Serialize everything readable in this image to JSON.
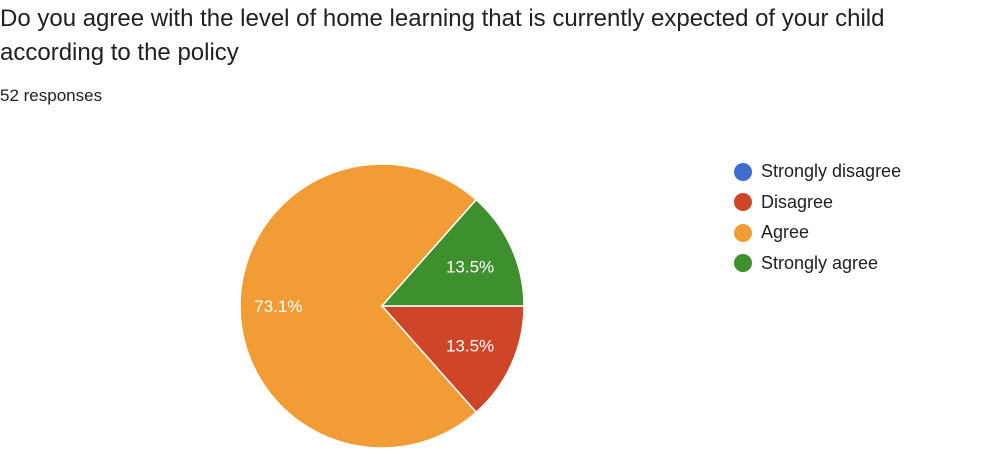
{
  "title": "Do you agree with the level of home learning that is currently expected of your child according to the policy",
  "responses": "52 responses",
  "chart_data": {
    "type": "pie",
    "title": "Do you agree with the level of home learning that is currently expected of your child according to the policy",
    "categories": [
      "Strongly disagree",
      "Disagree",
      "Agree",
      "Strongly agree"
    ],
    "values": [
      0,
      7,
      38,
      7
    ],
    "percent_labels": [
      "",
      "13.5%",
      "73.1%",
      "13.5%"
    ],
    "colors": [
      "#3366cc",
      "#dc3912",
      "#ff9900",
      "#109618"
    ],
    "display_colors": [
      "#3f6ccf",
      "#cf4527",
      "#f29c35",
      "#3e8f2e"
    ],
    "start_angle": "3 o'clock, clockwise",
    "legend_position": "right"
  }
}
